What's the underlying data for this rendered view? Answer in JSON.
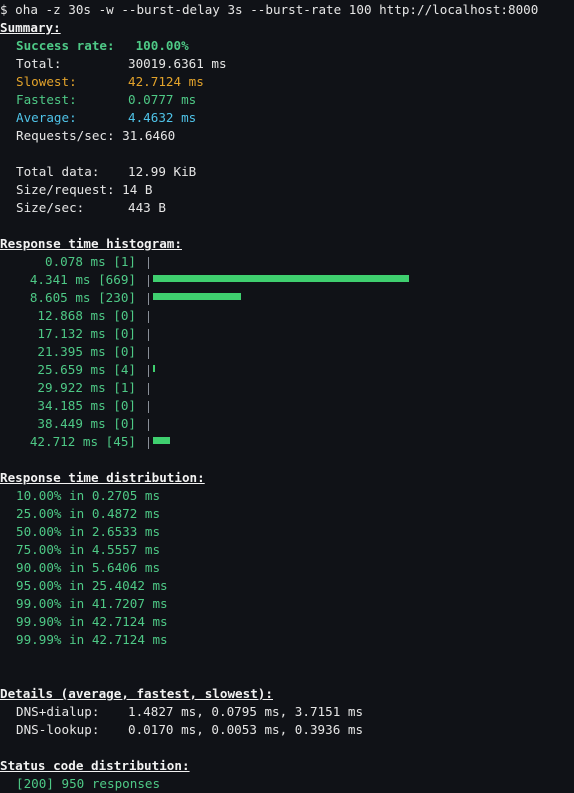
{
  "command": "$ oha -z 30s -w --burst-delay 3s --burst-rate 100 http://localhost:8000",
  "summary": {
    "title": "Summary:",
    "success_label": "Success rate:",
    "success_value": "100.00%",
    "total_label": "Total:",
    "total_value": "30019.6361 ms",
    "slowest_label": "Slowest:",
    "slowest_value": "42.7124 ms",
    "fastest_label": "Fastest:",
    "fastest_value": "0.0777 ms",
    "average_label": "Average:",
    "average_value": "4.4632 ms",
    "rps_label": "Requests/sec:",
    "rps_value": "31.6460",
    "total_data_label": "Total data:",
    "total_data_value": "12.99 KiB",
    "size_req_label": "Size/request:",
    "size_req_value": "14 B",
    "size_sec_label": "Size/sec:",
    "size_sec_value": "443 B"
  },
  "histogram": {
    "title": "Response time histogram:",
    "rows": [
      {
        "label": "0.078 ms [1]",
        "count": 1
      },
      {
        "label": "4.341 ms [669]",
        "count": 669
      },
      {
        "label": "8.605 ms [230]",
        "count": 230
      },
      {
        "label": "12.868 ms [0]",
        "count": 0
      },
      {
        "label": "17.132 ms [0]",
        "count": 0
      },
      {
        "label": "21.395 ms [0]",
        "count": 0
      },
      {
        "label": "25.659 ms [4]",
        "count": 4
      },
      {
        "label": "29.922 ms [1]",
        "count": 1
      },
      {
        "label": "34.185 ms [0]",
        "count": 0
      },
      {
        "label": "38.449 ms [0]",
        "count": 0
      },
      {
        "label": "42.712 ms [45]",
        "count": 45
      }
    ]
  },
  "distribution": {
    "title": "Response time distribution:",
    "rows": [
      "10.00% in 0.2705 ms",
      "25.00% in 0.4872 ms",
      "50.00% in 2.6533 ms",
      "75.00% in 4.5557 ms",
      "90.00% in 5.6406 ms",
      "95.00% in 25.4042 ms",
      "99.00% in 41.7207 ms",
      "99.90% in 42.7124 ms",
      "99.99% in 42.7124 ms"
    ]
  },
  "details": {
    "title": "Details (average, fastest, slowest):",
    "dns_dialup_label": "DNS+dialup:",
    "dns_dialup_value": "1.4827 ms, 0.0795 ms, 3.7151 ms",
    "dns_lookup_label": "DNS-lookup:",
    "dns_lookup_value": "0.0170 ms, 0.0053 ms, 0.3936 ms"
  },
  "status": {
    "title": "Status code distribution:",
    "line": "[200] 950 responses"
  },
  "colors": {
    "background": "#101217",
    "green": "#4ec986",
    "bar": "#3fcf6f",
    "yellow": "#e3a32b",
    "cyan": "#4fc3e8"
  }
}
